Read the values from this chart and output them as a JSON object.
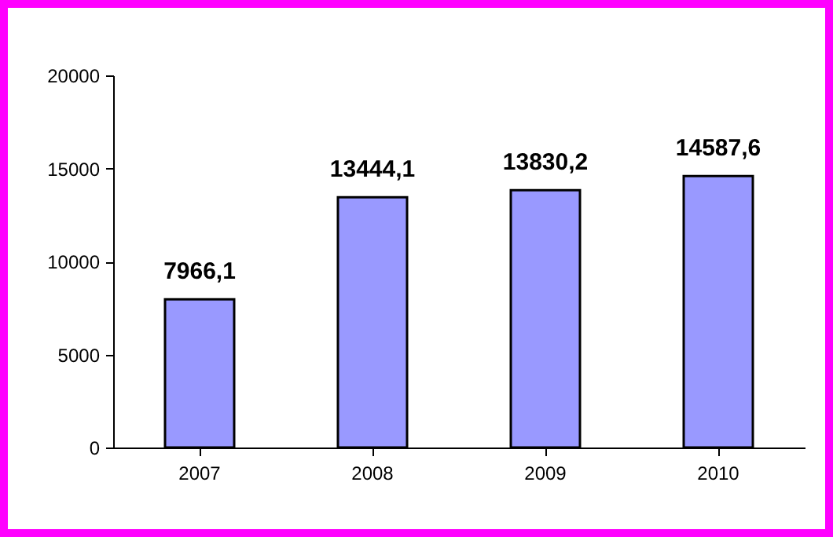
{
  "chart_data": {
    "type": "bar",
    "categories": [
      "2007",
      "2008",
      "2009",
      "2010"
    ],
    "values": [
      7966.1,
      13444.1,
      13830.2,
      14587.6
    ],
    "value_labels": [
      "7966,1",
      "13444,1",
      "13830,2",
      "14587,6"
    ],
    "color": "#9999ff",
    "ylim": [
      0,
      20000
    ],
    "yticks": [
      0,
      5000,
      10000,
      15000,
      20000
    ],
    "grid": false
  }
}
